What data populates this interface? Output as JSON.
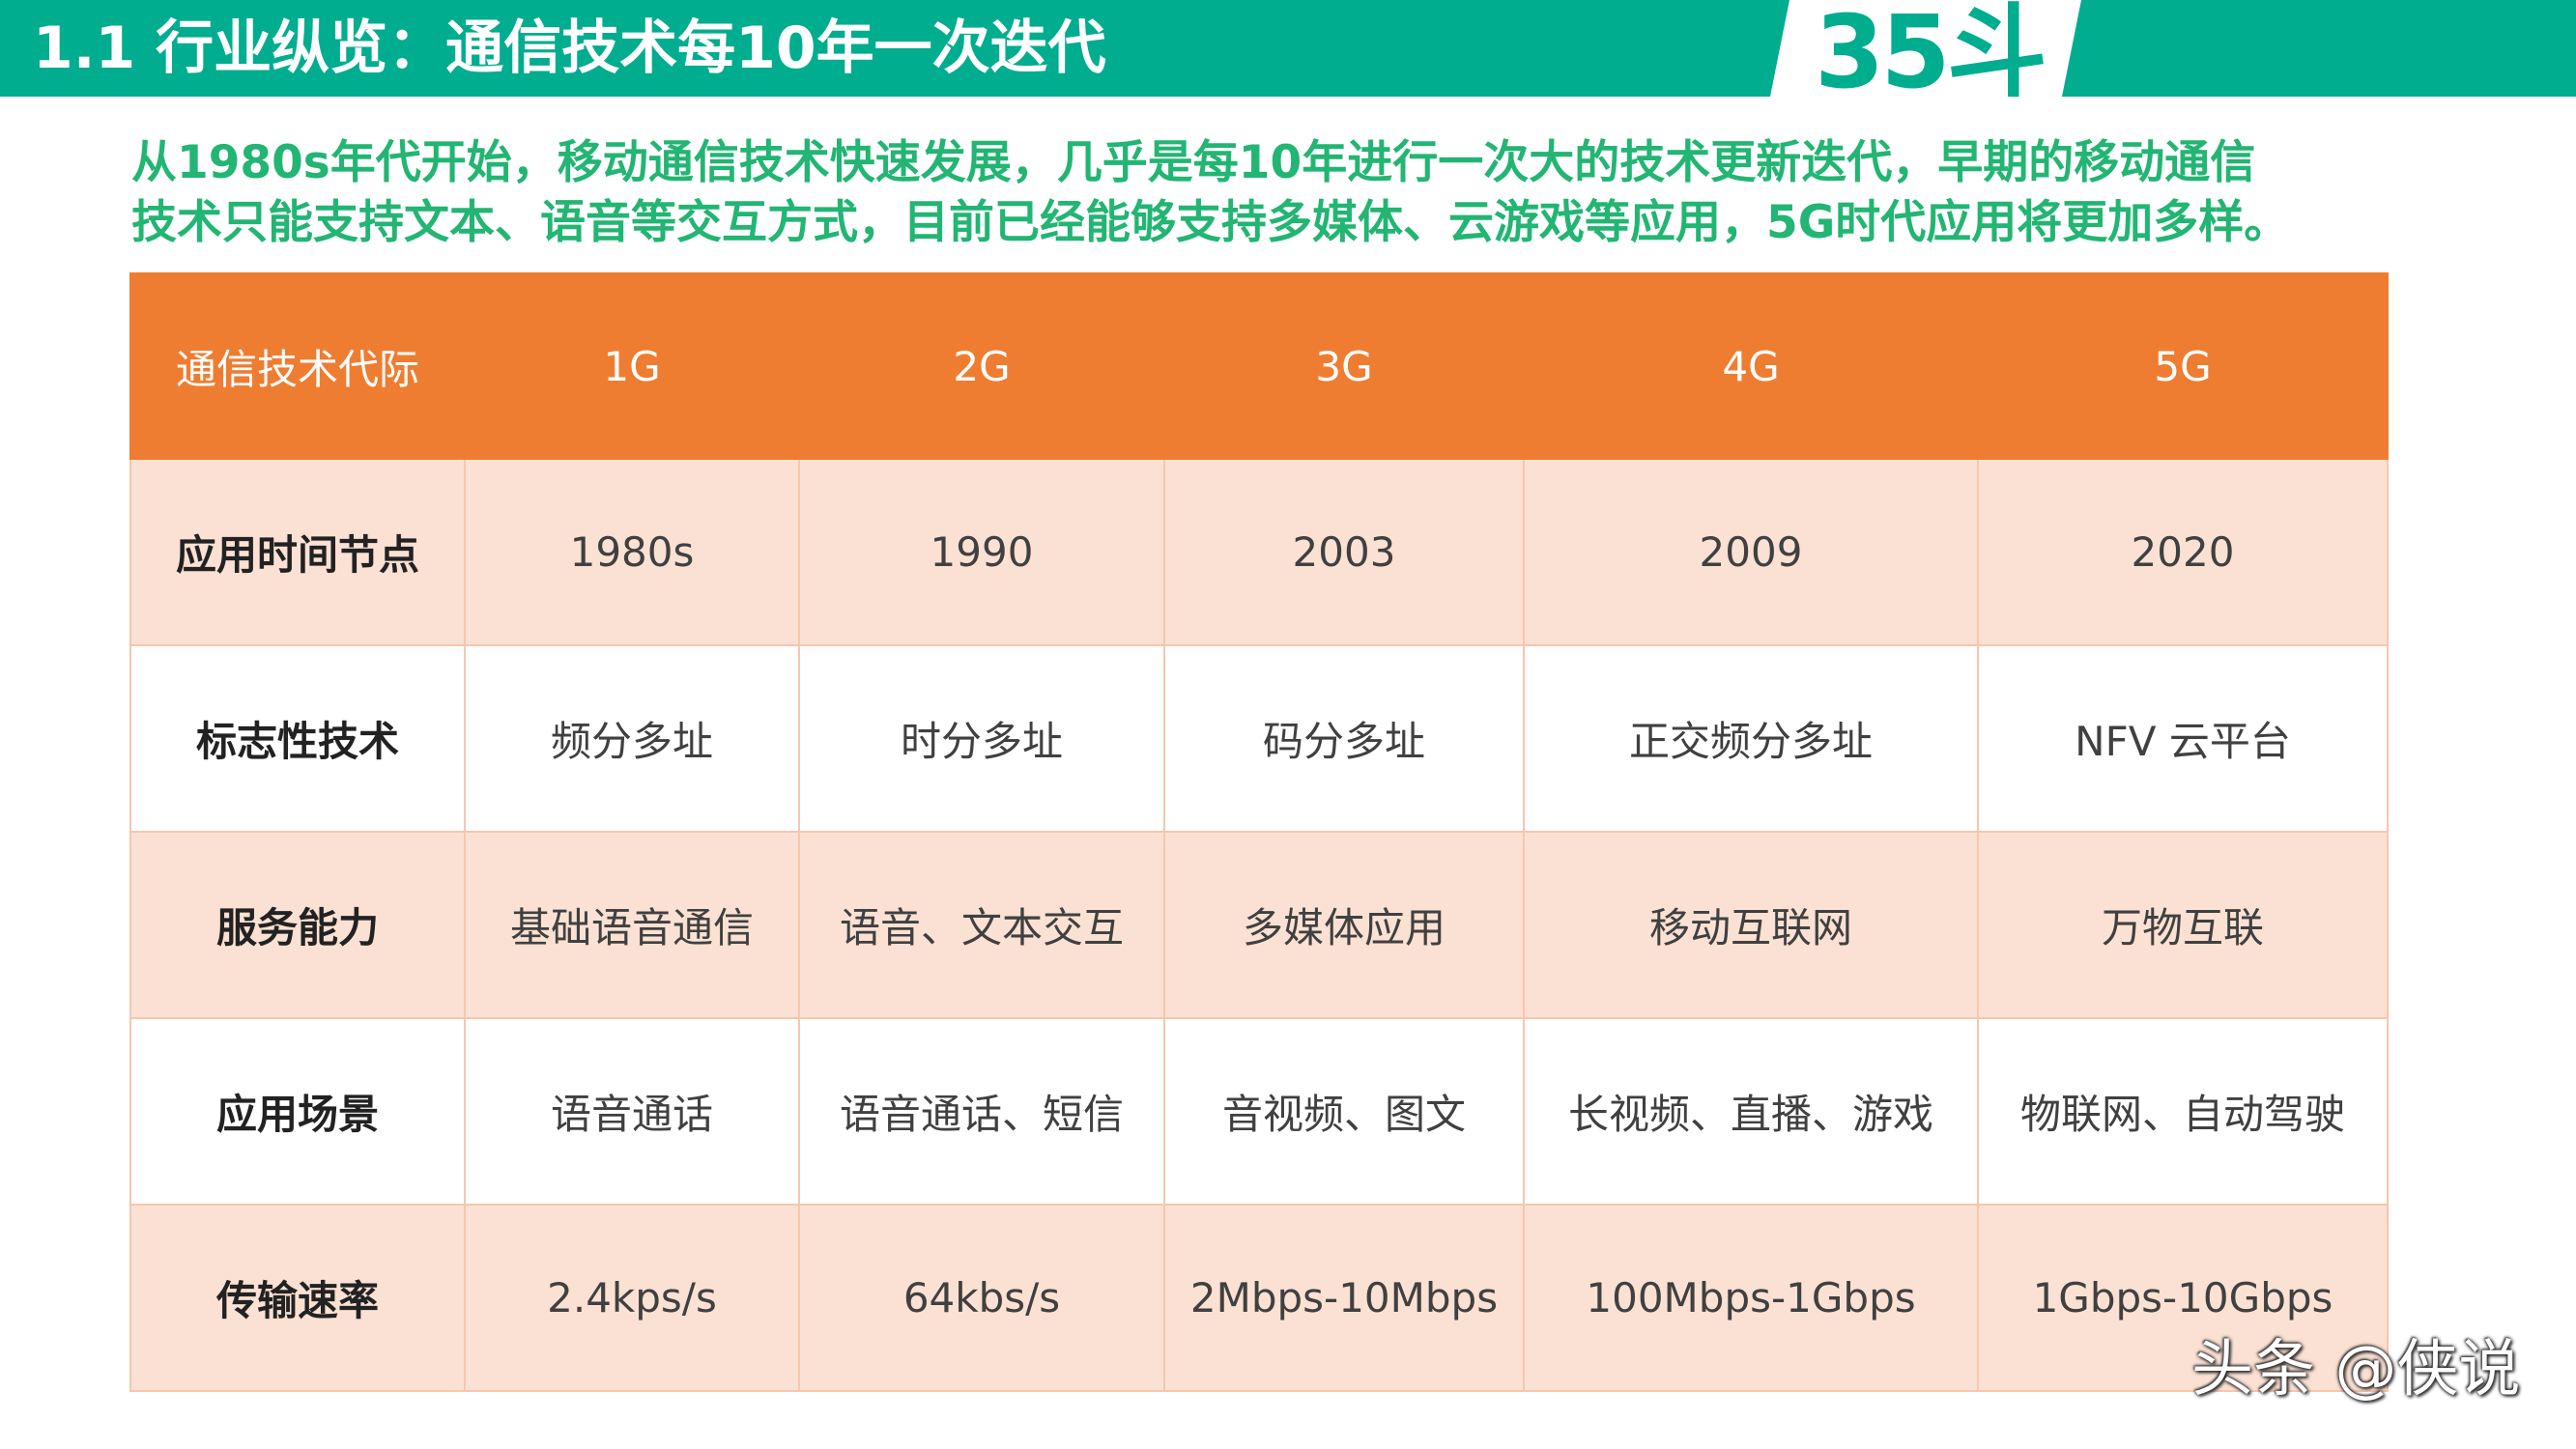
{
  "header": {
    "title": "1.1 行业纵览：通信技术每10年一次迭代",
    "logo": "35斗"
  },
  "intro": {
    "line1": "从1980s年代开始，移动通信技术快速发展，几乎是每10年进行一次大的技术更新迭代，早期的移动通信",
    "line2": "技术只能支持文本、语音等交互方式，目前已经能够支持多媒体、云游戏等应用，5G时代应用将更加多样。"
  },
  "table": {
    "columns": [
      "通信技术代际",
      "1G",
      "2G",
      "3G",
      "4G",
      "5G"
    ],
    "rows": [
      [
        "应用时间节点",
        "1980s",
        "1990",
        "2003",
        "2009",
        "2020"
      ],
      [
        "标志性技术",
        "频分多址",
        "时分多址",
        "码分多址",
        "正交频分多址",
        "NFV 云平台"
      ],
      [
        "服务能力",
        "基础语音通信",
        "语音、文本交互",
        "多媒体应用",
        "移动互联网",
        "万物互联"
      ],
      [
        "应用场景",
        "语音通话",
        "语音通话、短信",
        "音视频、图文",
        "长视频、直播、游戏",
        "物联网、自动驾驶"
      ],
      [
        "传输速率",
        "2.4kps/s",
        "64kbs/s",
        "2Mbps-10Mbps",
        "100Mbps-1Gbps",
        "1Gbps-10Gbps"
      ]
    ]
  },
  "watermark": "头条 @侠说",
  "colors": {
    "header_green": "#00ad8e",
    "intro_green": "#22b573",
    "table_header_orange": "#ef7d31",
    "row_peach": "#fbe1d3"
  }
}
